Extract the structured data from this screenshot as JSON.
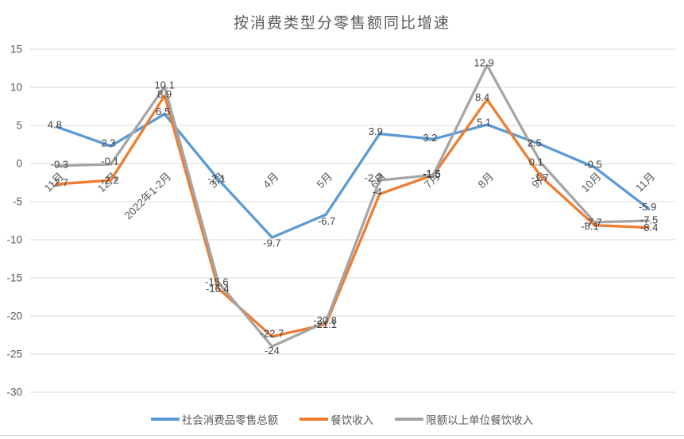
{
  "title": "按消费类型分零售额同比增速",
  "chart_data": {
    "type": "line",
    "title": "按消费类型分零售额同比增速",
    "xlabel": "",
    "ylabel": "",
    "categories": [
      "11月",
      "12月",
      "2022年1-2月",
      "3月",
      "4月",
      "5月",
      "6月",
      "7月",
      "8月",
      "9月",
      "10月",
      "11月"
    ],
    "series": [
      {
        "name": "社会消费品零售总额",
        "color": "#5B9BD5",
        "values": [
          4.8,
          2.3,
          6.5,
          -2.1,
          -9.7,
          -6.7,
          3.9,
          3.2,
          5.1,
          2.5,
          -0.5,
          -5.9
        ],
        "label_offsets": [
          [
            -3,
            -3
          ],
          [
            -3,
            -4
          ],
          [
            -2,
            -3
          ],
          [
            -2,
            -1
          ],
          [
            0,
            7
          ],
          [
            1,
            8
          ],
          [
            -5,
            -3
          ],
          [
            -4,
            -2
          ],
          [
            -4,
            -3
          ],
          [
            -8,
            -2
          ],
          [
            -2,
            -4
          ],
          [
            -1,
            -2
          ]
        ]
      },
      {
        "name": "餐饮收入",
        "color": "#ED7D31",
        "values": [
          -2.7,
          -2.2,
          8.9,
          -16.4,
          -22.7,
          -21.1,
          -4,
          -1.5,
          8.4,
          -1.7,
          -8.1,
          -8.4
        ],
        "label_offsets": [
          [
            3,
            -2
          ],
          [
            -1,
            0
          ],
          [
            0,
            -2
          ],
          [
            -1,
            0
          ],
          [
            0,
            -4
          ],
          [
            -1,
            0
          ],
          [
            -3,
            -3
          ],
          [
            -2,
            -1
          ],
          [
            -6,
            -3
          ],
          [
            -1,
            1
          ],
          [
            -6,
            1
          ],
          [
            1,
            0
          ]
        ]
      },
      {
        "name": "限额以上单位餐饮收入",
        "color": "#A5A5A5",
        "values": [
          -0.3,
          -0.1,
          10.1,
          -15.6,
          -24,
          -20.8,
          -2.2,
          -1.5,
          12.9,
          0.1,
          -7.7,
          -7.5
        ],
        "label_offsets": [
          [
            3,
            -2
          ],
          [
            -1,
            -4
          ],
          [
            0,
            -2
          ],
          [
            -2,
            -1
          ],
          [
            0,
            5
          ],
          [
            -1,
            -2
          ],
          [
            -8,
            -3
          ],
          [
            -2,
            -2
          ],
          [
            -4,
            -3
          ],
          [
            -6,
            -1
          ],
          [
            -2,
            0
          ],
          [
            1,
            -1
          ]
        ]
      }
    ],
    "ylim": [
      -30,
      15
    ],
    "yticks": [
      15,
      10,
      5,
      0,
      -5,
      -10,
      -15,
      -20,
      -25,
      -30
    ],
    "grid": true,
    "legend_position": "bottom",
    "colors": {
      "grid": "#D9D9D9",
      "axis_text": "#595959",
      "data_label": "#404040",
      "title_text": "#595959",
      "border": "#D9D9D9"
    }
  }
}
